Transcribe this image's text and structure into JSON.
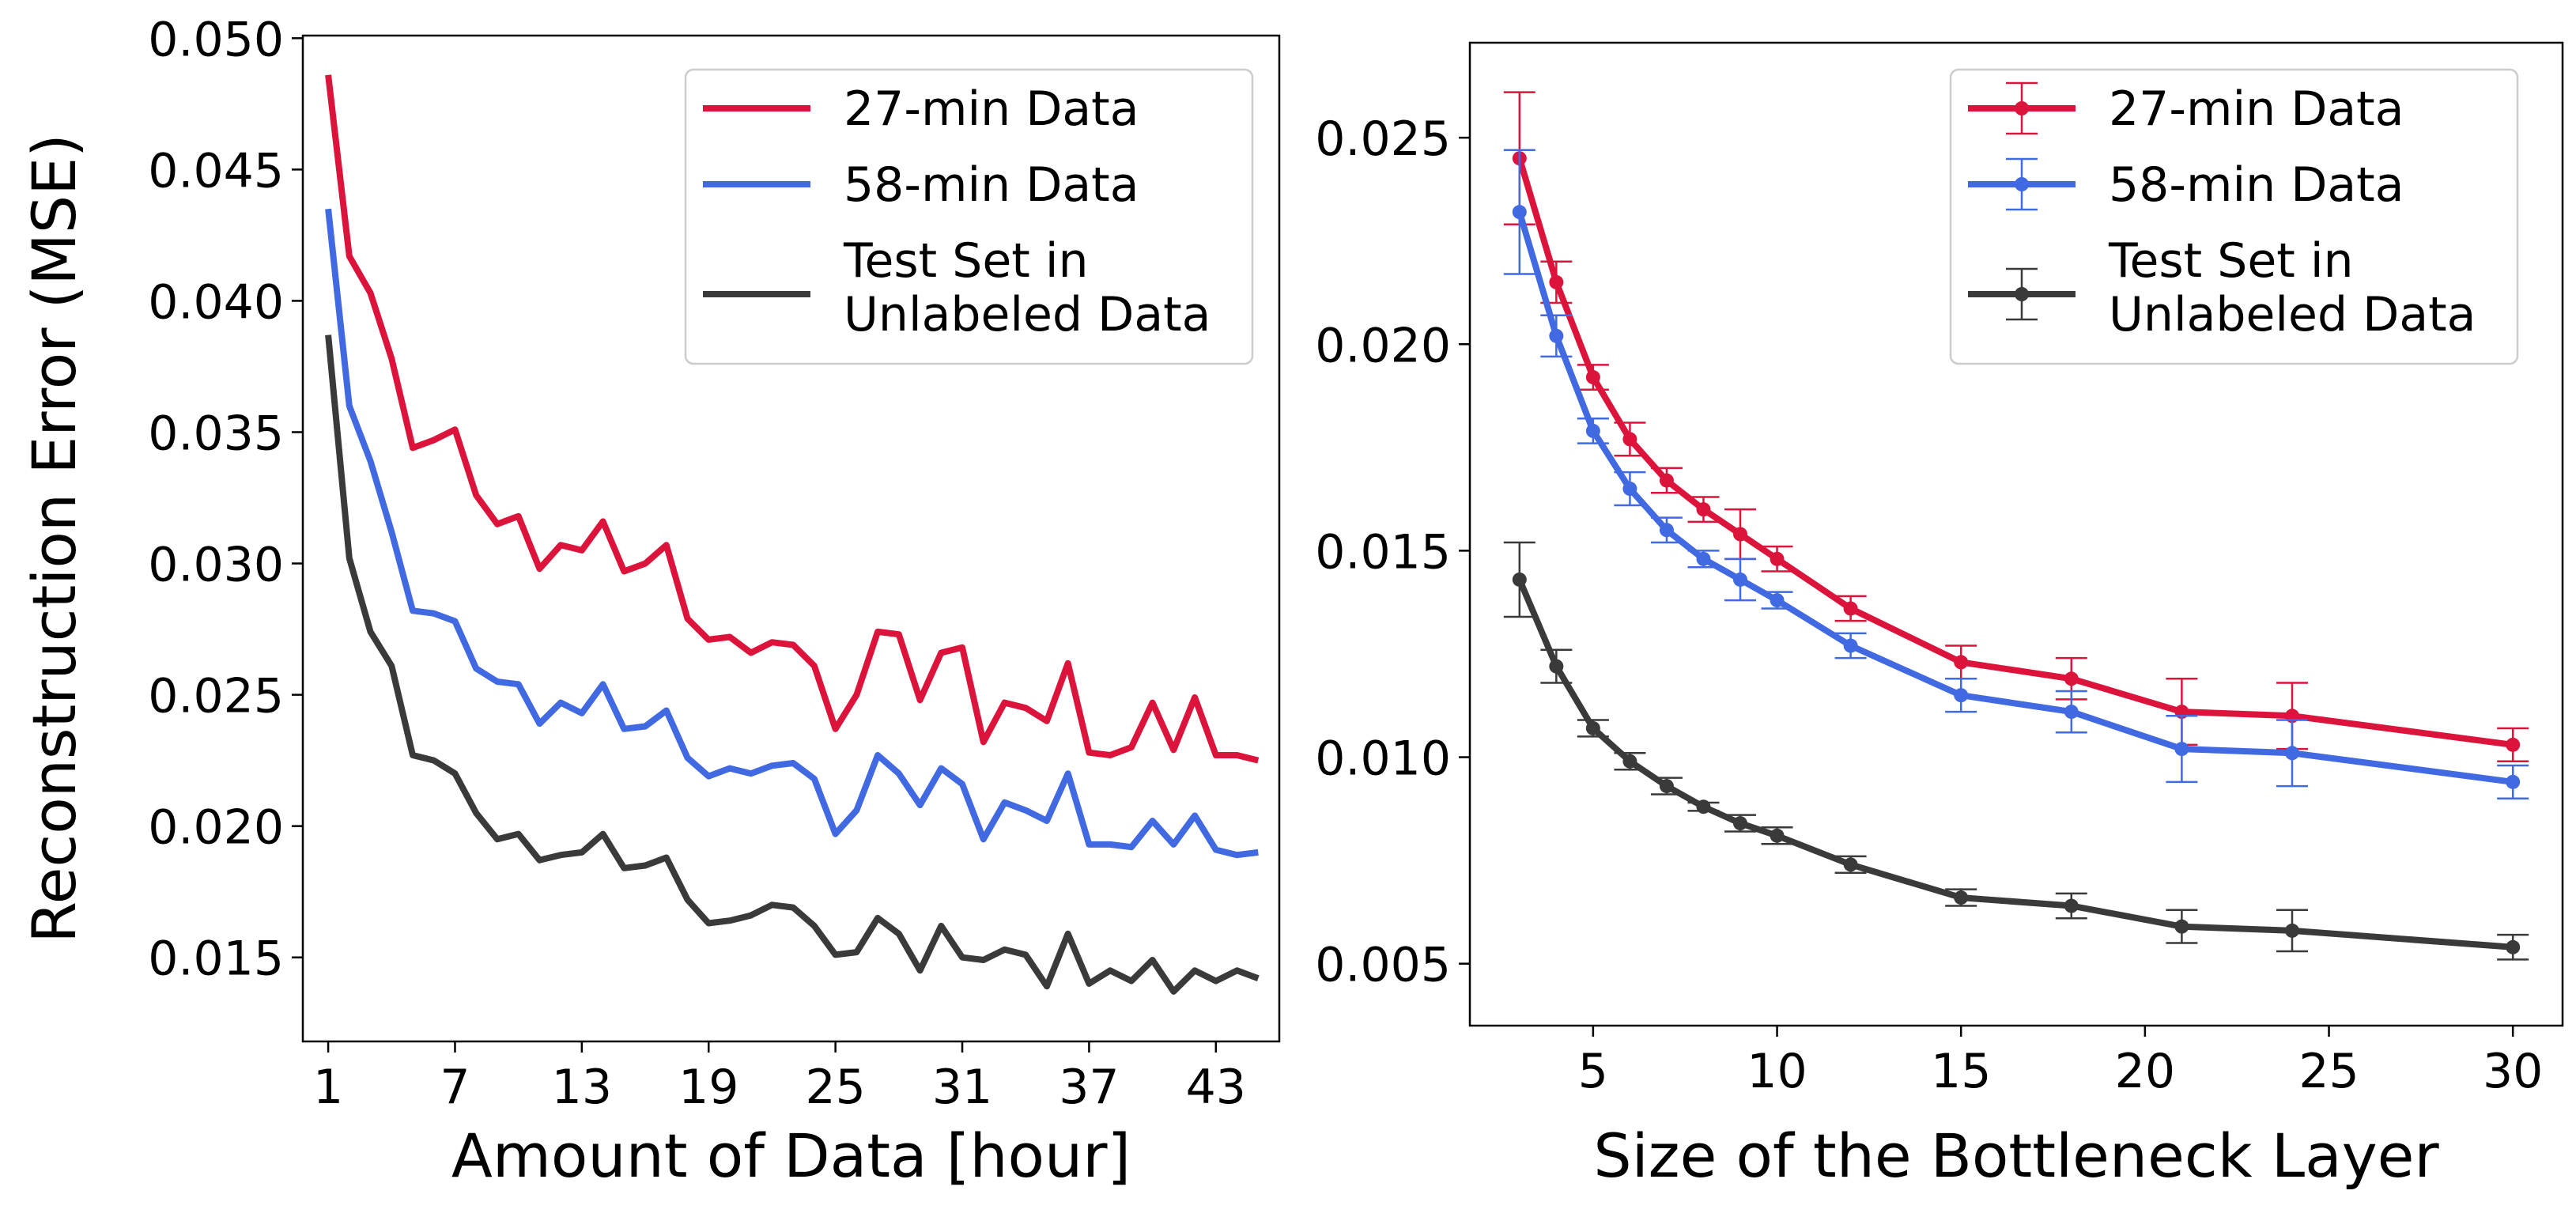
{
  "chart_data": [
    {
      "type": "line",
      "xlabel": "Amount of Data [hour]",
      "ylabel": "Reconstruction Error (MSE)",
      "xlim": [
        -0.2,
        46
      ],
      "ylim": [
        0.0118,
        0.0501
      ],
      "xticks": [
        1,
        7,
        13,
        19,
        25,
        31,
        37,
        43
      ],
      "yticks": [
        0.015,
        0.02,
        0.025,
        0.03,
        0.035,
        0.04,
        0.045,
        0.05
      ],
      "ytick_labels": [
        "0.015",
        "0.020",
        "0.025",
        "0.030",
        "0.035",
        "0.040",
        "0.045",
        "0.050"
      ],
      "legend": "top-right",
      "series": [
        {
          "name": "27-min Data",
          "color": "#dc143c",
          "x": [
            1,
            2,
            3,
            4,
            5,
            6,
            7,
            8,
            9,
            10,
            11,
            12,
            13,
            14,
            15,
            16,
            17,
            18,
            19,
            20,
            21,
            22,
            23,
            24,
            25,
            26,
            27,
            28,
            29,
            30,
            31,
            32,
            33,
            34,
            35,
            36,
            37,
            38,
            39,
            40,
            41,
            42,
            43,
            44,
            45
          ],
          "y": [
            0.0486,
            0.0417,
            0.0403,
            0.0378,
            0.0344,
            0.0347,
            0.0351,
            0.0326,
            0.0315,
            0.0318,
            0.0298,
            0.0307,
            0.0305,
            0.0316,
            0.0297,
            0.03,
            0.0307,
            0.0279,
            0.0271,
            0.0272,
            0.0266,
            0.027,
            0.0269,
            0.0261,
            0.0237,
            0.025,
            0.0274,
            0.0273,
            0.0248,
            0.0266,
            0.0268,
            0.0232,
            0.0247,
            0.0245,
            0.024,
            0.0262,
            0.0228,
            0.0227,
            0.023,
            0.0247,
            0.0229,
            0.0249,
            0.0227,
            0.0227,
            0.0225
          ]
        },
        {
          "name": "58-min Data",
          "color": "#4169e1",
          "x": [
            1,
            2,
            3,
            4,
            5,
            6,
            7,
            8,
            9,
            10,
            11,
            12,
            13,
            14,
            15,
            16,
            17,
            18,
            19,
            20,
            21,
            22,
            23,
            24,
            25,
            26,
            27,
            28,
            29,
            30,
            31,
            32,
            33,
            34,
            35,
            36,
            37,
            38,
            39,
            40,
            41,
            42,
            43,
            44,
            45
          ],
          "y": [
            0.0435,
            0.036,
            0.0339,
            0.0312,
            0.0282,
            0.0281,
            0.0278,
            0.026,
            0.0255,
            0.0254,
            0.0239,
            0.0247,
            0.0243,
            0.0254,
            0.0237,
            0.0238,
            0.0244,
            0.0226,
            0.0219,
            0.0222,
            0.022,
            0.0223,
            0.0224,
            0.0218,
            0.0197,
            0.0206,
            0.0227,
            0.022,
            0.0208,
            0.0222,
            0.0216,
            0.0195,
            0.0209,
            0.0206,
            0.0202,
            0.022,
            0.0193,
            0.0193,
            0.0192,
            0.0202,
            0.0193,
            0.0204,
            0.0191,
            0.0189,
            0.019
          ]
        },
        {
          "name": "Test Set in Unlabeled Data",
          "color": "#3a3a3a",
          "x": [
            1,
            2,
            3,
            4,
            5,
            6,
            7,
            8,
            9,
            10,
            11,
            12,
            13,
            14,
            15,
            16,
            17,
            18,
            19,
            20,
            21,
            22,
            23,
            24,
            25,
            26,
            27,
            28,
            29,
            30,
            31,
            32,
            33,
            34,
            35,
            36,
            37,
            38,
            39,
            40,
            41,
            42,
            43,
            44,
            45
          ],
          "y": [
            0.0387,
            0.0302,
            0.0274,
            0.0261,
            0.0227,
            0.0225,
            0.022,
            0.0205,
            0.0195,
            0.0197,
            0.0187,
            0.0189,
            0.019,
            0.0197,
            0.0184,
            0.0185,
            0.0188,
            0.0172,
            0.0163,
            0.0164,
            0.0166,
            0.017,
            0.0169,
            0.0162,
            0.0151,
            0.0152,
            0.0165,
            0.0159,
            0.0145,
            0.0162,
            0.015,
            0.0149,
            0.0153,
            0.0151,
            0.0139,
            0.0159,
            0.014,
            0.0145,
            0.0141,
            0.0149,
            0.0137,
            0.0145,
            0.0141,
            0.0145,
            0.0142
          ]
        }
      ]
    },
    {
      "type": "line",
      "xlabel": "Size of the Bottleneck Layer",
      "ylabel": "",
      "xlim": [
        1.65,
        31.35
      ],
      "ylim": [
        0.0035,
        0.0273
      ],
      "xticks": [
        5,
        10,
        15,
        20,
        25,
        30
      ],
      "yticks": [
        0.005,
        0.01,
        0.015,
        0.02,
        0.025
      ],
      "ytick_labels": [
        "0.005",
        "0.010",
        "0.015",
        "0.020",
        "0.025"
      ],
      "legend": "top-right",
      "error_bars": true,
      "series": [
        {
          "name": "27-min Data",
          "color": "#dc143c",
          "x": [
            3,
            4,
            5,
            6,
            7,
            8,
            9,
            10,
            12,
            15,
            18,
            21,
            24,
            30
          ],
          "y": [
            0.0245,
            0.0215,
            0.0192,
            0.0177,
            0.0167,
            0.016,
            0.0154,
            0.0148,
            0.0136,
            0.0123,
            0.0119,
            0.0111,
            0.011,
            0.0103
          ],
          "err": [
            0.0016,
            0.0005,
            0.0003,
            0.0004,
            0.0003,
            0.0003,
            0.0006,
            0.0003,
            0.0003,
            0.0004,
            0.0005,
            0.0008,
            0.0008,
            0.0004
          ]
        },
        {
          "name": "58-min Data",
          "color": "#4169e1",
          "x": [
            3,
            4,
            5,
            6,
            7,
            8,
            9,
            10,
            12,
            15,
            18,
            21,
            24,
            30
          ],
          "y": [
            0.0232,
            0.0202,
            0.0179,
            0.0165,
            0.0155,
            0.0148,
            0.0143,
            0.0138,
            0.0127,
            0.0115,
            0.0111,
            0.0102,
            0.0101,
            0.0094
          ],
          "err": [
            0.0015,
            0.0005,
            0.0003,
            0.0004,
            0.0003,
            0.0002,
            0.0005,
            0.0002,
            0.0003,
            0.0004,
            0.0005,
            0.0008,
            0.0008,
            0.0004
          ]
        },
        {
          "name": "Test Set in Unlabeled Data",
          "color": "#3a3a3a",
          "x": [
            3,
            4,
            5,
            6,
            7,
            8,
            9,
            10,
            12,
            15,
            18,
            21,
            24,
            30
          ],
          "y": [
            0.0143,
            0.0122,
            0.0107,
            0.0099,
            0.0093,
            0.0088,
            0.0084,
            0.0081,
            0.0074,
            0.0066,
            0.0064,
            0.0059,
            0.0058,
            0.0054
          ],
          "err": [
            0.0009,
            0.0004,
            0.0002,
            0.0002,
            0.0002,
            0.0001,
            0.0002,
            0.0002,
            0.0002,
            0.0002,
            0.0003,
            0.0004,
            0.0005,
            0.0003
          ]
        }
      ]
    }
  ]
}
